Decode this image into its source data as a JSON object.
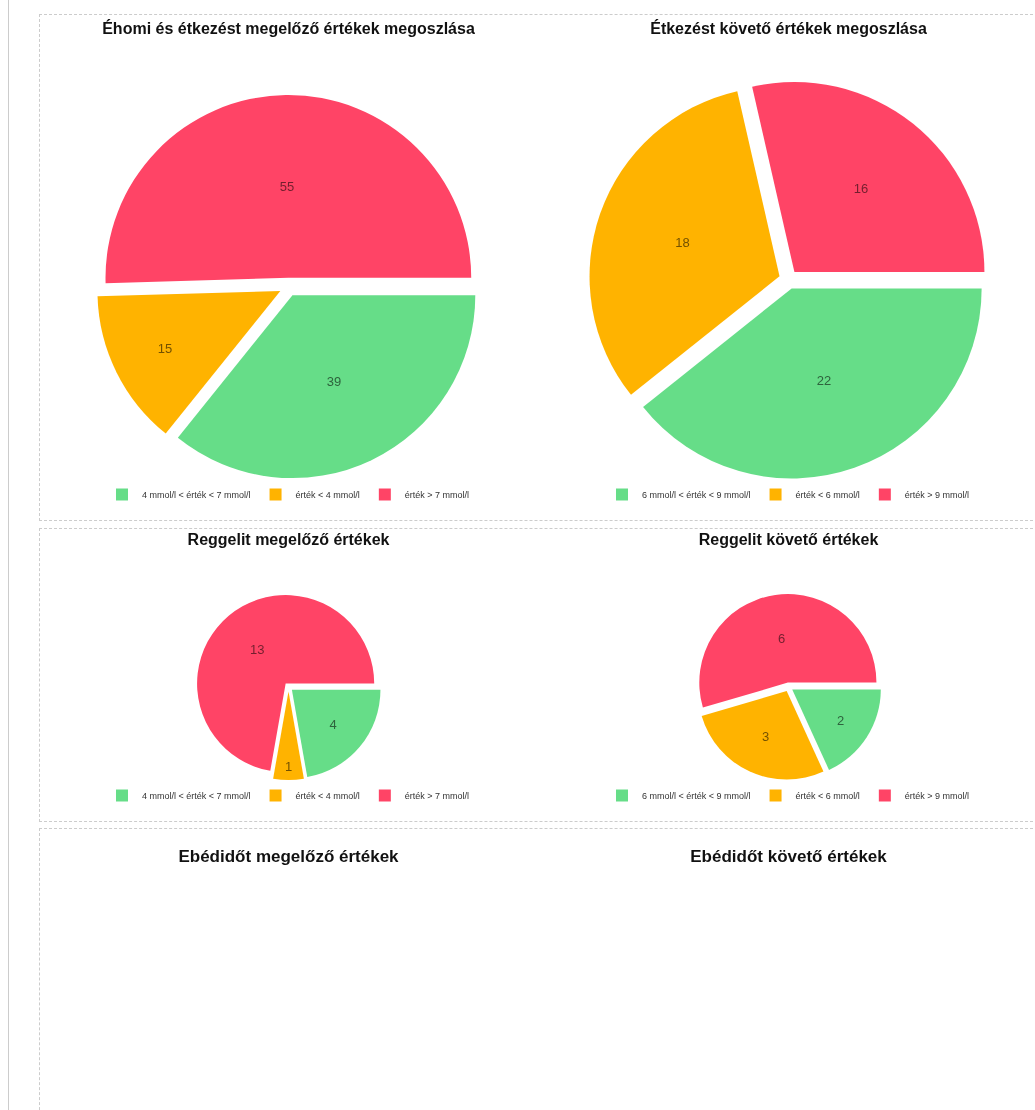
{
  "chart_data": [
    {
      "type": "pie",
      "title": "Éhomi és étkezést megelőző értékek megoszlása",
      "categories": [
        "4 mmol/l < érték < 7 mmol/l",
        "érték < 4 mmol/l",
        "érték > 7 mmol/l"
      ],
      "values": [
        39,
        15,
        55
      ],
      "colors": [
        "#66dd88",
        "#ffb300",
        "#ff4466"
      ],
      "data_labels": true,
      "legend": "bottom"
    },
    {
      "type": "pie",
      "title": "Étkezést követő értékek megoszlása",
      "categories": [
        "6 mmol/l < érték < 9 mmol/l",
        "érték < 6 mmol/l",
        "érték > 9 mmol/l"
      ],
      "values": [
        22,
        18,
        16
      ],
      "colors": [
        "#66dd88",
        "#ffb300",
        "#ff4466"
      ],
      "data_labels": true,
      "legend": "bottom"
    },
    {
      "type": "pie",
      "title": "Reggelit megelőző értékek",
      "categories": [
        "4 mmol/l < érték < 7 mmol/l",
        "érték < 4 mmol/l",
        "érték > 7 mmol/l"
      ],
      "values": [
        4,
        1,
        13
      ],
      "colors": [
        "#66dd88",
        "#ffb300",
        "#ff4466"
      ],
      "data_labels": true,
      "legend": "bottom"
    },
    {
      "type": "pie",
      "title": "Reggelit követő értékek",
      "categories": [
        "6 mmol/l < érték < 9 mmol/l",
        "érték < 6 mmol/l",
        "érték > 9 mmol/l"
      ],
      "values": [
        2,
        3,
        6
      ],
      "colors": [
        "#66dd88",
        "#ffb300",
        "#ff4466"
      ],
      "data_labels": true,
      "legend": "bottom"
    },
    {
      "type": "other",
      "title": "Ebédidőt megelőző értékek"
    },
    {
      "type": "other",
      "title": "Ebédidőt követő értékek"
    }
  ]
}
